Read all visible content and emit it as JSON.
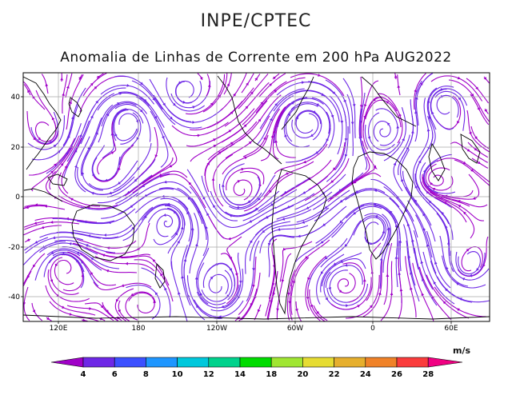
{
  "header": {
    "org": "INPE/CPTEC"
  },
  "map": {
    "title": "Anomalia de Linhas de Corrente em 200 hPa AUG2022",
    "lat_ticks": [
      "40",
      "20",
      "0",
      "-20",
      "-40"
    ],
    "lon_ticks": [
      "120E",
      "180",
      "120W",
      "60W",
      "0",
      "60E"
    ]
  },
  "colorbar": {
    "unit": "m/s",
    "labels": [
      "4",
      "6",
      "8",
      "10",
      "12",
      "14",
      "18",
      "20",
      "22",
      "24",
      "26",
      "28"
    ],
    "colors": [
      "#a000c8",
      "#6e28e6",
      "#3c50ff",
      "#1e96ff",
      "#00c8dc",
      "#00d28c",
      "#00dc00",
      "#a0e632",
      "#e6dc32",
      "#e6af2d",
      "#f08228",
      "#fa3c3c",
      "#f00082"
    ]
  }
}
